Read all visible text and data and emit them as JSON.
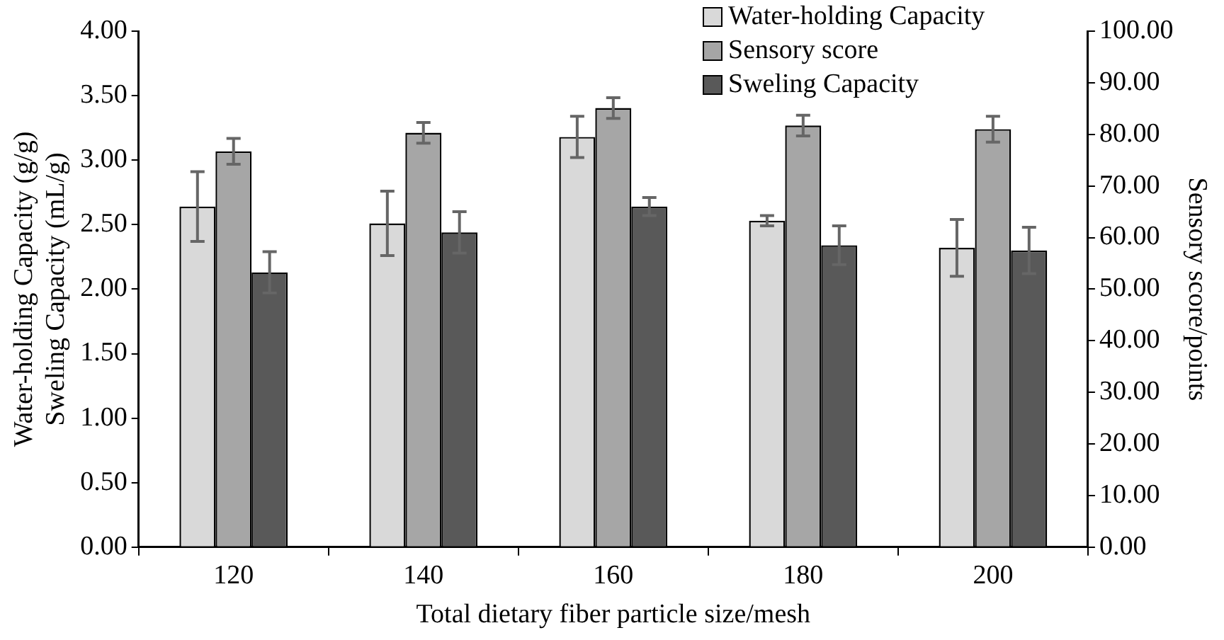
{
  "chart_data": {
    "type": "bar",
    "xlabel": "Total dietary fiber particle size/mesh",
    "ylabel": "Water-holding Capacity (g/g)\nSweling Capacity (mL/g)",
    "y2label": "Sensory score/points",
    "categories": [
      "120",
      "140",
      "160",
      "180",
      "200"
    ],
    "series": [
      {
        "name": "Water-holding Capacity",
        "color": "#d9d9d9",
        "values": [
          2.64,
          2.51,
          3.18,
          2.53,
          2.32
        ],
        "errors": [
          0.27,
          0.25,
          0.16,
          0.04,
          0.22
        ]
      },
      {
        "name": "Sensory score",
        "color": "#a6a6a6",
        "axis": "y2",
        "values": [
          76.7,
          80.3,
          85.1,
          81.7,
          81.0
        ],
        "errors": [
          2.5,
          2,
          2,
          2,
          2.5
        ]
      },
      {
        "name": "Sweling Capacity",
        "color": "#595959",
        "values": [
          2.13,
          2.44,
          2.64,
          2.34,
          2.3
        ],
        "errors": [
          0.16,
          0.16,
          0.07,
          0.15,
          0.18
        ]
      }
    ],
    "ylim": [
      0,
      4
    ],
    "yticks": [
      {
        "value": 0,
        "label": "0.00"
      },
      {
        "value": 0.5,
        "label": "0.50"
      },
      {
        "value": 1,
        "label": "1.00"
      },
      {
        "value": 1.5,
        "label": "1.50"
      },
      {
        "value": 2,
        "label": "2.00"
      },
      {
        "value": 2.5,
        "label": "2.50"
      },
      {
        "value": 3,
        "label": "3.00"
      },
      {
        "value": 3.5,
        "label": "3.50"
      },
      {
        "value": 4,
        "label": "4.00"
      }
    ],
    "y2lim": [
      0,
      100
    ],
    "y2ticks": [
      {
        "value": 0,
        "label": "0.00"
      },
      {
        "value": 10,
        "label": "10.00"
      },
      {
        "value": 20,
        "label": "20.00"
      },
      {
        "value": 30,
        "label": "30.00"
      },
      {
        "value": 40,
        "label": "40.00"
      },
      {
        "value": 50,
        "label": "50.00"
      },
      {
        "value": 60,
        "label": "60.00"
      },
      {
        "value": 70,
        "label": "70.00"
      },
      {
        "value": 80,
        "label": "80.00"
      },
      {
        "value": 90,
        "label": "90.00"
      },
      {
        "value": 100,
        "label": "100.00"
      }
    ],
    "grid": false,
    "legend": "top right"
  }
}
